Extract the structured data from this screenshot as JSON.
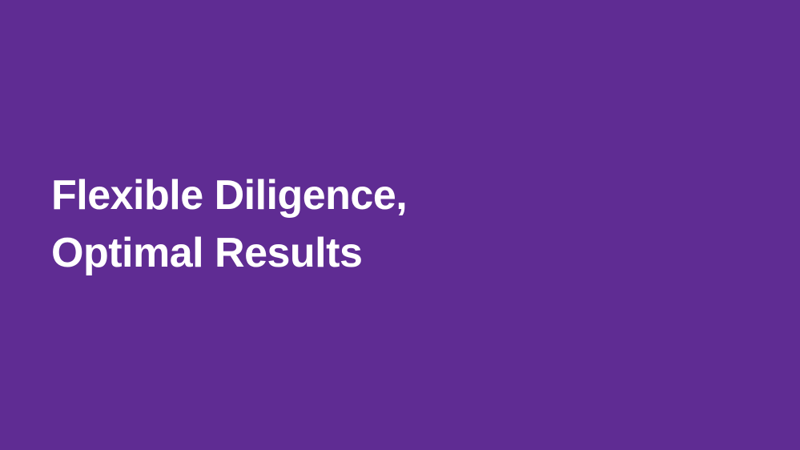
{
  "slide": {
    "background_color": "#5f2c93",
    "text_color": "#ffffff",
    "title_lines": [
      "Flexible Diligence,",
      "Optimal Results"
    ]
  }
}
